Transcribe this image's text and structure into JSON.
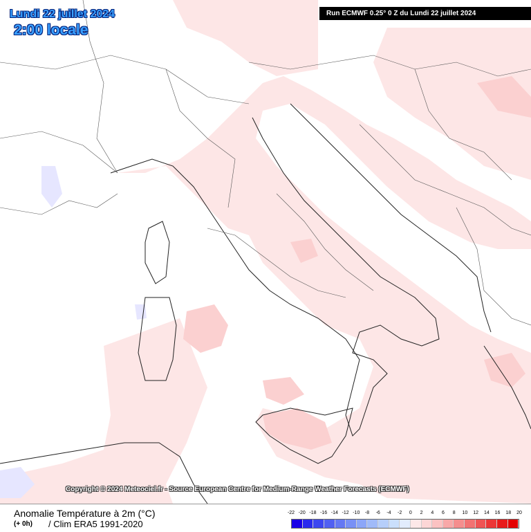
{
  "header": {
    "date": "Lundi 22 juillet 2024",
    "time": "2:00 locale",
    "run": "Run ECMWF 0.25° 0 Z du Lundi 22 juillet 2024"
  },
  "copyright": "Copyright © 2024 Meteociel.fr - Source European Centre for Medium-Range Weather Forecasts (ECMWF)",
  "footer": {
    "title": "Anomalie Température à 2m (°C)",
    "lead": "(+ 0h)",
    "clim": "/ Clim ERA5 1991-2020"
  },
  "legend": {
    "ticks": [
      "-22",
      "-20",
      "-18",
      "-16",
      "-14",
      "-12",
      "-10",
      "-8",
      "-6",
      "-4",
      "-2",
      "0",
      "2",
      "4",
      "6",
      "8",
      "10",
      "12",
      "14",
      "16",
      "18",
      "20"
    ],
    "colors": [
      "#1a00e6",
      "#2a2aee",
      "#3c46f0",
      "#5060f2",
      "#6478f4",
      "#7890f6",
      "#8ca6f8",
      "#a0baf9",
      "#b6cefa",
      "#cadffc",
      "#e2ecfd",
      "#fde8e8",
      "#fcd6d6",
      "#fbc2c2",
      "#f8a8a8",
      "#f58e8e",
      "#f27272",
      "#ef5454",
      "#ec3636",
      "#e81a1a",
      "#e40000"
    ]
  },
  "colors": {
    "sea": "#fde6e6",
    "land_neutral": "#ffffff",
    "warm_patch": "#fbd0d0",
    "cool_patch": "#e6e6ff",
    "border": "#222222"
  }
}
